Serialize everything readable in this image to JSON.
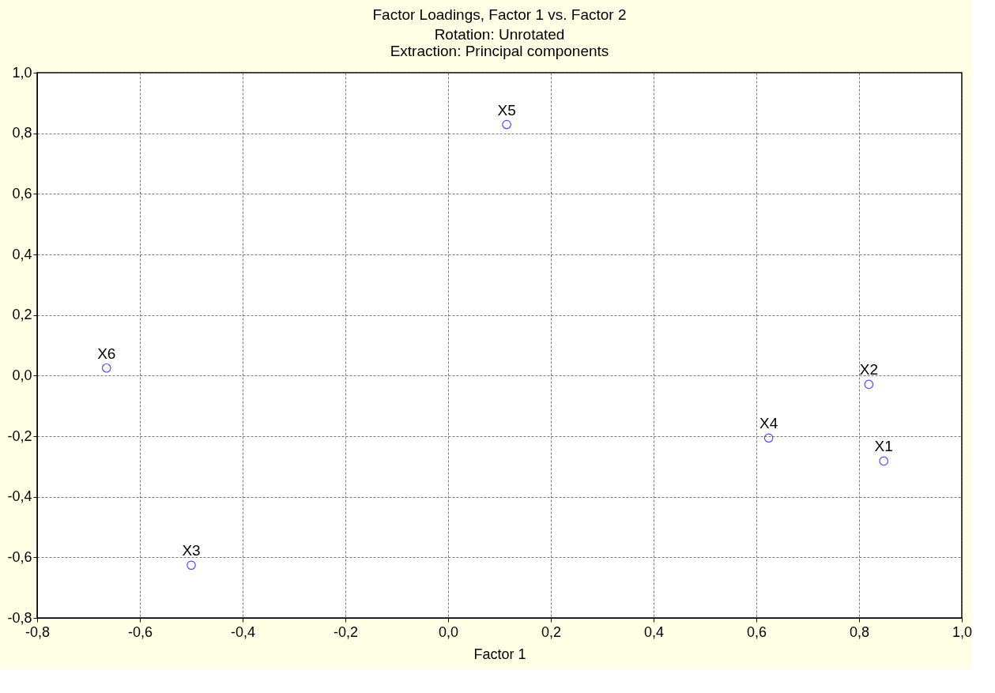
{
  "chart_data": {
    "type": "scatter",
    "title": "Factor Loadings, Factor 1 vs. Factor 2",
    "subtitle": "Rotation: Unrotated\nExtraction: Principal components",
    "xlabel": "Factor 1",
    "series": [
      {
        "name": "X1",
        "color": "#0000ff",
        "x": [
          0.848
        ],
        "values": [
          -0.282
        ]
      },
      {
        "name": "X2",
        "color": "#0000ff",
        "x": [
          0.819
        ],
        "values": [
          -0.029
        ]
      },
      {
        "name": "X3",
        "color": "#0000ff",
        "x": [
          -0.5
        ],
        "values": [
          -0.626
        ]
      },
      {
        "name": "X4",
        "color": "#0000ff",
        "x": [
          0.624
        ],
        "values": [
          -0.206
        ]
      },
      {
        "name": "X5",
        "color": "#0000ff",
        "x": [
          0.114
        ],
        "values": [
          0.829
        ]
      },
      {
        "name": "X6",
        "color": "#0000ff",
        "x": [
          -0.665
        ],
        "values": [
          0.025
        ]
      }
    ],
    "xlim": [
      -0.8,
      1.0
    ],
    "ylim": [
      -0.8,
      1.0
    ],
    "xticks": [
      {
        "value": -0.8,
        "label": "-0,8"
      },
      {
        "value": -0.6,
        "label": "-0,6"
      },
      {
        "value": -0.4,
        "label": "-0,4"
      },
      {
        "value": -0.2,
        "label": "-0,2"
      },
      {
        "value": 0.0,
        "label": "0,0"
      },
      {
        "value": 0.2,
        "label": "0,2"
      },
      {
        "value": 0.4,
        "label": "0,4"
      },
      {
        "value": 0.6,
        "label": "0,6"
      },
      {
        "value": 0.8,
        "label": "0,8"
      },
      {
        "value": 1.0,
        "label": "1,0"
      }
    ],
    "yticks": [
      {
        "value": -0.8,
        "label": "-0,8"
      },
      {
        "value": -0.6,
        "label": "-0,6"
      },
      {
        "value": -0.4,
        "label": "-0,4"
      },
      {
        "value": -0.2,
        "label": "-0,2"
      },
      {
        "value": 0.0,
        "label": "0,0"
      },
      {
        "value": 0.2,
        "label": "0,2"
      },
      {
        "value": 0.4,
        "label": "0,4"
      },
      {
        "value": 0.6,
        "label": "0,6"
      },
      {
        "value": 0.8,
        "label": "0,8"
      },
      {
        "value": 1.0,
        "label": "1,0"
      }
    ],
    "grid": true,
    "marker": "circle"
  }
}
